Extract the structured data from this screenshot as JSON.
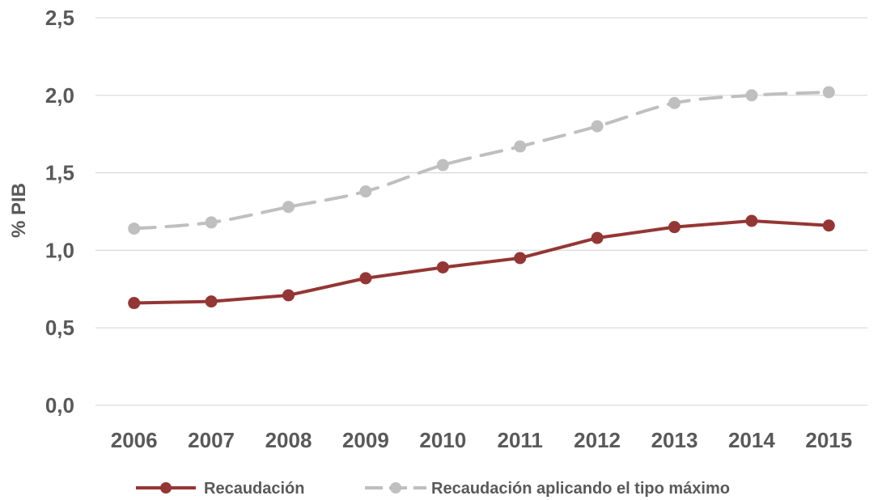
{
  "chart_data": {
    "type": "line",
    "title": "",
    "xlabel": "",
    "ylabel": "% PIB",
    "ylim": [
      0,
      2.5
    ],
    "yticks": [
      "0,0",
      "0,5",
      "1,0",
      "1,5",
      "2,0",
      "2,5"
    ],
    "ytick_values": [
      0,
      0.5,
      1.0,
      1.5,
      2.0,
      2.5
    ],
    "categories": [
      "2006",
      "2007",
      "2008",
      "2009",
      "2010",
      "2011",
      "2012",
      "2013",
      "2014",
      "2015"
    ],
    "grid": true,
    "legend_position": "bottom",
    "series": [
      {
        "name": "Recaudación",
        "color": "#943634",
        "style": "solid",
        "values": [
          0.66,
          0.67,
          0.71,
          0.82,
          0.89,
          0.95,
          1.08,
          1.15,
          1.19,
          1.16
        ]
      },
      {
        "name": "Recaudación aplicando el tipo máximo",
        "color": "#bfbfbf",
        "style": "dashed",
        "values": [
          1.14,
          1.18,
          1.28,
          1.38,
          1.55,
          1.67,
          1.8,
          1.95,
          2.0,
          2.02
        ]
      }
    ]
  }
}
